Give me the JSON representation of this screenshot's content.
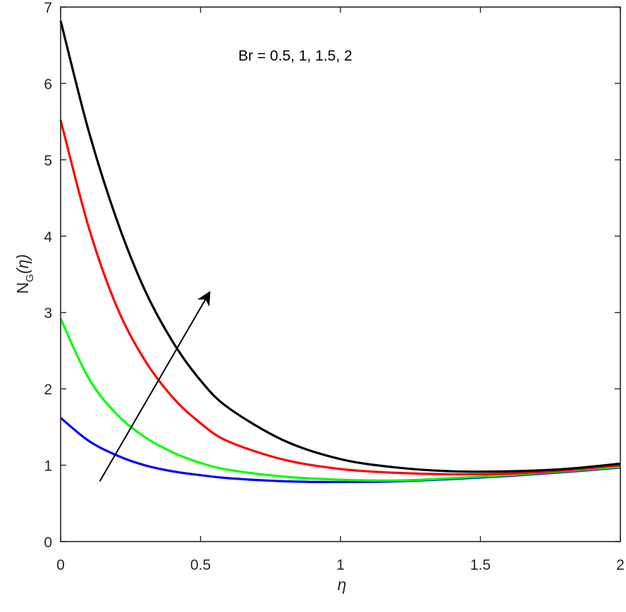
{
  "chart_data": {
    "type": "line",
    "xlabel": "η",
    "ylabel_main": "N",
    "ylabel_sub": "G",
    "ylabel_paren": "(η)",
    "annotation": "Br = 0.5, 1, 1.5, 2",
    "xlim": [
      0,
      2
    ],
    "ylim": [
      0,
      7
    ],
    "xticks": [
      "0",
      "0.5",
      "1",
      "1.5",
      "2"
    ],
    "yticks": [
      "0",
      "1",
      "2",
      "3",
      "4",
      "5",
      "6",
      "7"
    ],
    "grid": false,
    "box": true,
    "x": [
      0,
      0.1,
      0.2,
      0.3,
      0.4,
      0.5,
      0.6,
      0.8,
      1.0,
      1.2,
      1.4,
      1.6,
      1.8,
      2.0
    ],
    "series": [
      {
        "color": "#0000ff",
        "values": [
          1.62,
          1.32,
          1.13,
          1.0,
          0.92,
          0.87,
          0.83,
          0.79,
          0.78,
          0.79,
          0.82,
          0.86,
          0.91,
          0.97
        ]
      },
      {
        "color": "#00ff00",
        "values": [
          2.92,
          2.14,
          1.67,
          1.37,
          1.17,
          1.03,
          0.94,
          0.85,
          0.81,
          0.8,
          0.83,
          0.87,
          0.92,
          0.98
        ]
      },
      {
        "color": "#ff0000",
        "values": [
          5.52,
          4.12,
          3.08,
          2.38,
          1.89,
          1.55,
          1.31,
          1.07,
          0.95,
          0.9,
          0.88,
          0.89,
          0.93,
          1.0
        ]
      },
      {
        "color": "#000000",
        "values": [
          6.82,
          5.38,
          4.22,
          3.3,
          2.62,
          2.11,
          1.75,
          1.32,
          1.08,
          0.97,
          0.92,
          0.92,
          0.95,
          1.02
        ]
      }
    ],
    "arrow": {
      "from": [
        0.14,
        0.79
      ],
      "to": [
        0.53,
        3.25
      ]
    }
  }
}
